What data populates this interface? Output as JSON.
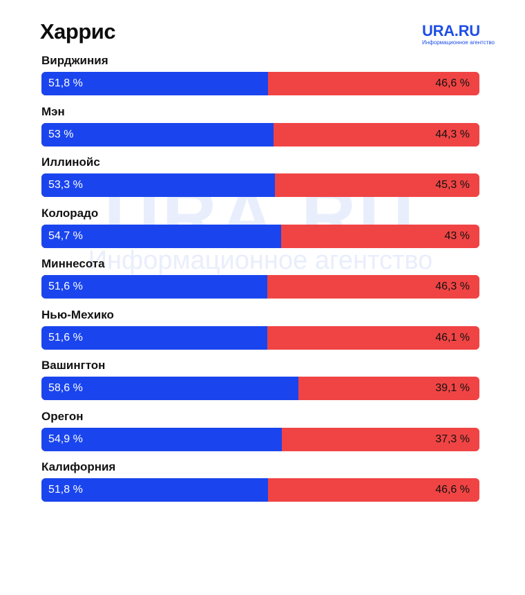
{
  "header": {
    "title": "Харрис",
    "logo_name": "URA.RU",
    "logo_sub": "Информационное агентство"
  },
  "watermark": {
    "name": "URA.RU",
    "sub": "Информационное агентство"
  },
  "colors": {
    "blue": "#1a45ee",
    "red": "#f04444"
  },
  "chart_data": {
    "type": "bar",
    "title": "Харрис",
    "orientation": "horizontal-stacked",
    "categories": [
      "Вирджиния",
      "Мэн",
      "Иллинойс",
      "Колорадо",
      "Миннесота",
      "Нью-Мехико",
      "Вашингтон",
      "Орегон",
      "Калифорния"
    ],
    "series": [
      {
        "name": "blue",
        "values": [
          51.8,
          53,
          53.3,
          54.7,
          51.6,
          51.6,
          58.6,
          54.9,
          51.8
        ],
        "labels": [
          "51,8 %",
          "53 %",
          "53,3 %",
          "54,7 %",
          "51,6 %",
          "51,6 %",
          "58,6 %",
          "54,9 %",
          "51,8 %"
        ]
      },
      {
        "name": "red",
        "values": [
          46.6,
          44.3,
          45.3,
          43,
          46.3,
          46.1,
          39.1,
          37.3,
          46.6
        ],
        "labels": [
          "46,6 %",
          "44,3 %",
          "45,3 %",
          "43 %",
          "46,3 %",
          "46,1 %",
          "39,1 %",
          "37,3 %",
          "46,6 %"
        ]
      }
    ],
    "xlim": [
      0,
      100
    ],
    "xlabel": "",
    "ylabel": ""
  }
}
